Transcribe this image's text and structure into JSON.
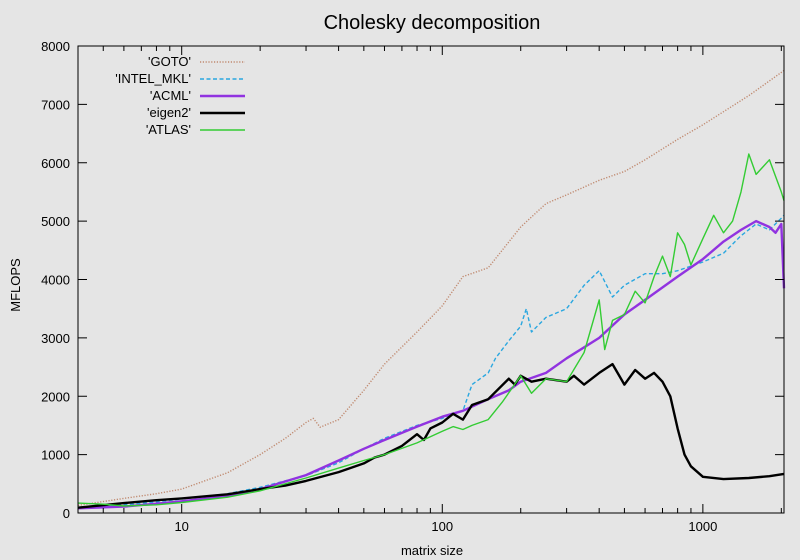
{
  "chart_data": {
    "type": "line",
    "title": "Cholesky decomposition",
    "xlabel": "matrix size",
    "ylabel": "MFLOPS",
    "xscale": "log",
    "xlim": [
      4,
      2048
    ],
    "ylim": [
      0,
      8000
    ],
    "xticks": [
      10,
      100,
      1000
    ],
    "yticks": [
      0,
      1000,
      2000,
      3000,
      4000,
      5000,
      6000,
      7000,
      8000
    ],
    "grid": false,
    "legend": "top-left",
    "series": [
      {
        "name": "'GOTO'",
        "color": "#c08a70",
        "style": "dotted",
        "x": [
          4,
          6,
          8,
          10,
          15,
          20,
          25,
          30,
          32,
          34,
          40,
          50,
          60,
          80,
          100,
          120,
          150,
          200,
          250,
          300,
          400,
          500,
          600,
          800,
          1000,
          1500,
          2048
        ],
        "y": [
          130,
          250,
          330,
          410,
          690,
          1000,
          1280,
          1550,
          1620,
          1470,
          1600,
          2100,
          2550,
          3100,
          3550,
          4050,
          4200,
          4900,
          5300,
          5450,
          5700,
          5850,
          6050,
          6400,
          6650,
          7150,
          7580
        ]
      },
      {
        "name": "'INTEL_MKL'",
        "color": "#2aa7e0",
        "style": "dashed",
        "x": [
          4,
          6,
          8,
          10,
          15,
          20,
          30,
          40,
          50,
          60,
          80,
          100,
          110,
          120,
          130,
          150,
          160,
          180,
          200,
          210,
          220,
          250,
          300,
          350,
          400,
          450,
          500,
          600,
          700,
          800,
          1000,
          1200,
          1400,
          1600,
          1800,
          2000,
          2048
        ],
        "y": [
          100,
          140,
          190,
          240,
          330,
          440,
          640,
          860,
          1100,
          1280,
          1500,
          1620,
          1700,
          1750,
          2200,
          2400,
          2650,
          2950,
          3200,
          3500,
          3100,
          3350,
          3500,
          3900,
          4150,
          3700,
          3900,
          4100,
          4100,
          4150,
          4300,
          4450,
          4750,
          4950,
          4850,
          5050,
          5100
        ]
      },
      {
        "name": "'ACML'",
        "color": "#9133e0",
        "style": "solid",
        "x": [
          4,
          6,
          8,
          10,
          15,
          20,
          30,
          40,
          50,
          60,
          80,
          100,
          120,
          150,
          180,
          200,
          250,
          300,
          400,
          500,
          600,
          800,
          1000,
          1200,
          1400,
          1600,
          1800,
          1900,
          2000,
          2048
        ],
        "y": [
          80,
          110,
          160,
          200,
          290,
          410,
          650,
          900,
          1100,
          1250,
          1480,
          1650,
          1750,
          1950,
          2100,
          2250,
          2400,
          2650,
          3000,
          3400,
          3650,
          4050,
          4350,
          4650,
          4850,
          5000,
          4900,
          4800,
          4950,
          3850
        ]
      },
      {
        "name": "'eigen2'",
        "color": "#000000",
        "style": "solid",
        "x": [
          4,
          6,
          8,
          10,
          15,
          20,
          25,
          30,
          40,
          50,
          55,
          60,
          70,
          80,
          85,
          90,
          100,
          110,
          120,
          130,
          150,
          180,
          190,
          200,
          220,
          250,
          300,
          320,
          350,
          400,
          450,
          500,
          550,
          600,
          650,
          700,
          750,
          800,
          850,
          900,
          1000,
          1200,
          1500,
          1800,
          2048
        ],
        "y": [
          90,
          170,
          220,
          250,
          320,
          410,
          470,
          550,
          700,
          850,
          950,
          1000,
          1150,
          1350,
          1250,
          1450,
          1550,
          1700,
          1600,
          1850,
          1950,
          2300,
          2200,
          2350,
          2250,
          2300,
          2250,
          2350,
          2200,
          2400,
          2550,
          2200,
          2450,
          2300,
          2400,
          2250,
          2000,
          1450,
          1000,
          800,
          620,
          580,
          600,
          630,
          670
        ]
      },
      {
        "name": "'ATLAS'",
        "color": "#33cc33",
        "style": "solid",
        "x": [
          4,
          5,
          6,
          8,
          10,
          15,
          20,
          30,
          40,
          50,
          60,
          80,
          100,
          110,
          120,
          130,
          150,
          170,
          200,
          220,
          250,
          300,
          350,
          400,
          420,
          450,
          500,
          550,
          600,
          650,
          700,
          750,
          800,
          850,
          900,
          1000,
          1100,
          1200,
          1300,
          1400,
          1500,
          1600,
          1800,
          2000,
          2048
        ],
        "y": [
          170,
          150,
          120,
          140,
          180,
          270,
          380,
          600,
          770,
          900,
          1000,
          1200,
          1400,
          1480,
          1430,
          1500,
          1600,
          1900,
          2350,
          2050,
          2300,
          2250,
          2750,
          3650,
          2800,
          3300,
          3400,
          3800,
          3600,
          4050,
          4400,
          4050,
          4800,
          4600,
          4250,
          4700,
          5100,
          4800,
          5000,
          5500,
          6150,
          5800,
          6050,
          5500,
          5350
        ]
      }
    ]
  }
}
